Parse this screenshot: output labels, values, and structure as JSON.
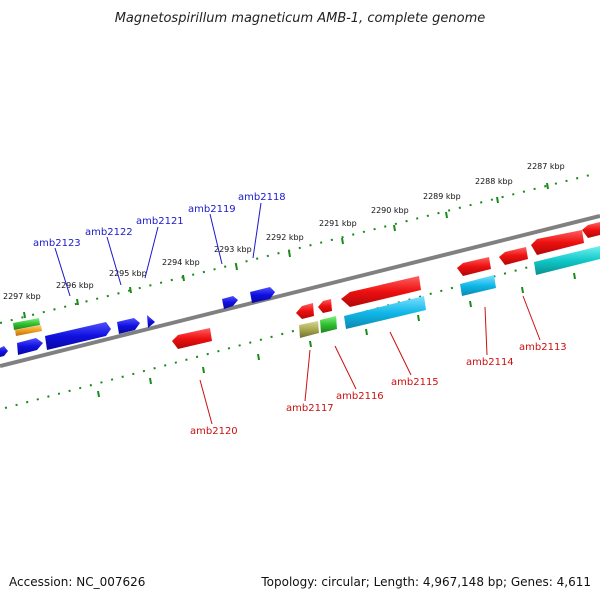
{
  "title": "Magnetospirillum magneticum AMB-1, complete genome",
  "footer": {
    "accession": "Accession: NC_007626",
    "topology": "Topology: circular; Length: 4,967,148 bp; Genes: 4,611"
  },
  "scale_labels": [
    "2297 kbp",
    "2296 kbp",
    "2295 kbp",
    "2294 kbp",
    "2293 kbp",
    "2292 kbp",
    "2291 kbp",
    "2290 kbp",
    "2289 kbp",
    "2288 kbp",
    "2287 kbp"
  ],
  "genes_top": [
    "amb2123",
    "amb2122",
    "amb2121",
    "amb2119",
    "amb2118"
  ],
  "genes_bottom": [
    "amb2120",
    "amb2117",
    "amb2116",
    "amb2115",
    "amb2114",
    "amb2113"
  ],
  "colors": {
    "blue": "#1010e0",
    "red": "#ee1010",
    "cyan": "#10b8e8",
    "teal": "#10c8c8",
    "green": "#30c030",
    "olive": "#a8a850",
    "orange": "#f0a020",
    "backbone": "#808080",
    "tick": "#1a8a1a"
  }
}
